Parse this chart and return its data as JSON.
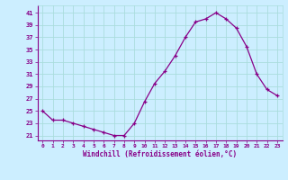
{
  "x": [
    0,
    1,
    2,
    3,
    4,
    5,
    6,
    7,
    8,
    9,
    10,
    11,
    12,
    13,
    14,
    15,
    16,
    17,
    18,
    19,
    20,
    21,
    22,
    23
  ],
  "y": [
    25,
    23.5,
    23.5,
    23,
    22.5,
    22,
    21.5,
    21,
    21,
    23,
    26.5,
    29.5,
    31.5,
    34,
    37,
    39.5,
    40,
    41,
    40,
    38.5,
    35.5,
    31,
    28.5,
    27.5
  ],
  "line_color": "#880088",
  "marker": "+",
  "bg_color": "#cceeff",
  "grid_color": "#aadddd",
  "xlabel": "Windchill (Refroidissement éolien,°C)",
  "tick_color": "#880088",
  "yticks": [
    21,
    23,
    25,
    27,
    29,
    31,
    33,
    35,
    37,
    39,
    41
  ],
  "ylim": [
    20.2,
    42.2
  ],
  "xlim": [
    -0.5,
    23.5
  ],
  "figsize": [
    3.2,
    2.0
  ],
  "dpi": 100
}
